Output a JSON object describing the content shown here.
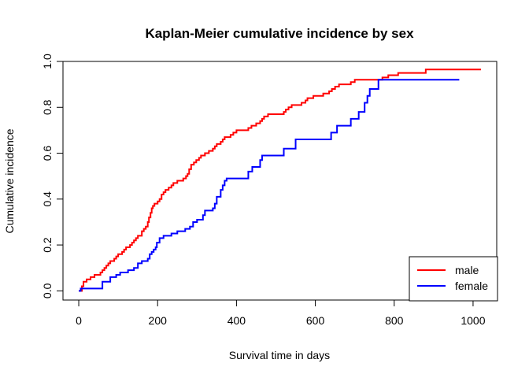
{
  "chart_data": {
    "type": "line",
    "step": true,
    "title": "Kaplan-Meier cumulative incidence by sex",
    "xlabel": "Survival time in days",
    "ylabel": "Cumulative incidence",
    "xlim": [
      -40,
      1060
    ],
    "ylim": [
      -0.04,
      1.0
    ],
    "xticks": [
      0,
      200,
      400,
      600,
      800,
      1000
    ],
    "yticks": [
      0.0,
      0.2,
      0.4,
      0.6,
      0.8,
      1.0
    ],
    "xtick_labels": [
      "0",
      "200",
      "400",
      "600",
      "800",
      "1000"
    ],
    "ytick_labels": [
      "0.0",
      "0.2",
      "0.4",
      "0.6",
      "0.8",
      "1.0"
    ],
    "grid": false,
    "legend": "bottom-right",
    "series": [
      {
        "name": "male",
        "color": "#ff0000",
        "points": [
          [
            0,
            0.0
          ],
          [
            8,
            0.02
          ],
          [
            12,
            0.04
          ],
          [
            20,
            0.05
          ],
          [
            30,
            0.06
          ],
          [
            40,
            0.07
          ],
          [
            55,
            0.08
          ],
          [
            60,
            0.09
          ],
          [
            65,
            0.1
          ],
          [
            70,
            0.11
          ],
          [
            75,
            0.12
          ],
          [
            80,
            0.13
          ],
          [
            90,
            0.14
          ],
          [
            95,
            0.15
          ],
          [
            100,
            0.16
          ],
          [
            110,
            0.17
          ],
          [
            115,
            0.18
          ],
          [
            120,
            0.19
          ],
          [
            130,
            0.2
          ],
          [
            135,
            0.21
          ],
          [
            140,
            0.22
          ],
          [
            145,
            0.23
          ],
          [
            150,
            0.24
          ],
          [
            160,
            0.26
          ],
          [
            165,
            0.27
          ],
          [
            170,
            0.28
          ],
          [
            175,
            0.3
          ],
          [
            178,
            0.32
          ],
          [
            182,
            0.34
          ],
          [
            185,
            0.36
          ],
          [
            188,
            0.37
          ],
          [
            192,
            0.38
          ],
          [
            200,
            0.39
          ],
          [
            205,
            0.4
          ],
          [
            210,
            0.42
          ],
          [
            215,
            0.43
          ],
          [
            220,
            0.44
          ],
          [
            228,
            0.45
          ],
          [
            235,
            0.46
          ],
          [
            240,
            0.47
          ],
          [
            250,
            0.48
          ],
          [
            265,
            0.49
          ],
          [
            272,
            0.5
          ],
          [
            276,
            0.51
          ],
          [
            280,
            0.53
          ],
          [
            285,
            0.55
          ],
          [
            292,
            0.56
          ],
          [
            298,
            0.57
          ],
          [
            305,
            0.58
          ],
          [
            310,
            0.59
          ],
          [
            320,
            0.6
          ],
          [
            330,
            0.61
          ],
          [
            340,
            0.62
          ],
          [
            345,
            0.63
          ],
          [
            350,
            0.64
          ],
          [
            360,
            0.65
          ],
          [
            365,
            0.66
          ],
          [
            370,
            0.67
          ],
          [
            385,
            0.68
          ],
          [
            392,
            0.69
          ],
          [
            400,
            0.7
          ],
          [
            430,
            0.71
          ],
          [
            438,
            0.72
          ],
          [
            450,
            0.73
          ],
          [
            460,
            0.74
          ],
          [
            465,
            0.75
          ],
          [
            470,
            0.76
          ],
          [
            480,
            0.77
          ],
          [
            520,
            0.78
          ],
          [
            525,
            0.79
          ],
          [
            532,
            0.8
          ],
          [
            540,
            0.81
          ],
          [
            565,
            0.82
          ],
          [
            575,
            0.83
          ],
          [
            580,
            0.84
          ],
          [
            595,
            0.85
          ],
          [
            620,
            0.86
          ],
          [
            635,
            0.87
          ],
          [
            642,
            0.88
          ],
          [
            650,
            0.89
          ],
          [
            660,
            0.9
          ],
          [
            690,
            0.91
          ],
          [
            700,
            0.92
          ],
          [
            770,
            0.93
          ],
          [
            785,
            0.94
          ],
          [
            810,
            0.95
          ],
          [
            880,
            0.965
          ],
          [
            1020,
            0.965
          ]
        ]
      },
      {
        "name": "female",
        "color": "#0000ff",
        "points": [
          [
            0,
            0.0
          ],
          [
            5,
            0.01
          ],
          [
            60,
            0.04
          ],
          [
            80,
            0.06
          ],
          [
            95,
            0.07
          ],
          [
            105,
            0.08
          ],
          [
            125,
            0.09
          ],
          [
            140,
            0.1
          ],
          [
            150,
            0.12
          ],
          [
            160,
            0.13
          ],
          [
            175,
            0.14
          ],
          [
            180,
            0.16
          ],
          [
            185,
            0.17
          ],
          [
            190,
            0.18
          ],
          [
            195,
            0.19
          ],
          [
            198,
            0.21
          ],
          [
            205,
            0.23
          ],
          [
            215,
            0.24
          ],
          [
            235,
            0.25
          ],
          [
            250,
            0.26
          ],
          [
            270,
            0.27
          ],
          [
            282,
            0.28
          ],
          [
            290,
            0.3
          ],
          [
            300,
            0.31
          ],
          [
            315,
            0.33
          ],
          [
            320,
            0.35
          ],
          [
            340,
            0.36
          ],
          [
            345,
            0.38
          ],
          [
            350,
            0.41
          ],
          [
            360,
            0.44
          ],
          [
            365,
            0.46
          ],
          [
            370,
            0.48
          ],
          [
            375,
            0.49
          ],
          [
            430,
            0.52
          ],
          [
            440,
            0.54
          ],
          [
            460,
            0.57
          ],
          [
            465,
            0.59
          ],
          [
            520,
            0.62
          ],
          [
            550,
            0.66
          ],
          [
            640,
            0.69
          ],
          [
            655,
            0.72
          ],
          [
            690,
            0.75
          ],
          [
            710,
            0.78
          ],
          [
            725,
            0.82
          ],
          [
            732,
            0.85
          ],
          [
            738,
            0.88
          ],
          [
            760,
            0.92
          ],
          [
            965,
            0.92
          ]
        ]
      }
    ]
  }
}
